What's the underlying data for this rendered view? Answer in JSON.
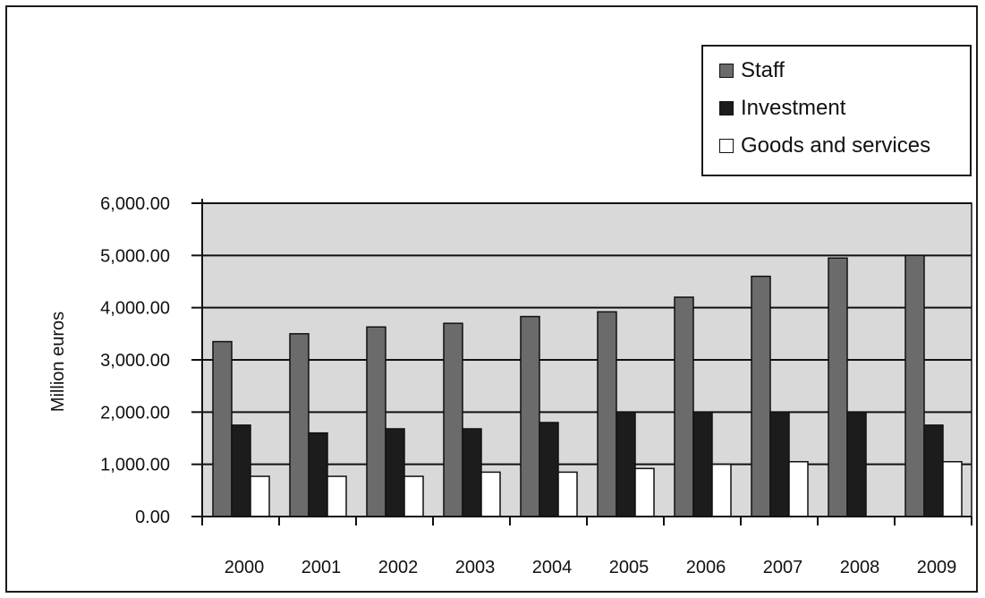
{
  "chart_data": {
    "type": "bar",
    "title": "",
    "xlabel": "",
    "ylabel": "Million euros",
    "ylim": [
      0,
      6000
    ],
    "yticks": [
      "0.00",
      "1,000.00",
      "2,000.00",
      "3,000.00",
      "4,000.00",
      "5,000.00",
      "6,000.00"
    ],
    "ytick_values": [
      0,
      1000,
      2000,
      3000,
      4000,
      5000,
      6000
    ],
    "categories": [
      "2000",
      "2001",
      "2002",
      "2003",
      "2004",
      "2005",
      "2006",
      "2007",
      "2008",
      "2009"
    ],
    "series": [
      {
        "name": "Staff",
        "color": "#6b6b6b",
        "values": [
          3350,
          3500,
          3630,
          3700,
          3830,
          3920,
          4200,
          4600,
          4950,
          5000
        ]
      },
      {
        "name": "Investment",
        "color": "#1c1c1c",
        "values": [
          1750,
          1600,
          1680,
          1680,
          1800,
          2000,
          2000,
          2000,
          2000,
          1750
        ]
      },
      {
        "name": "Goods and services",
        "color": "#ffffff",
        "values": [
          770,
          770,
          770,
          850,
          850,
          920,
          1000,
          1050,
          0,
          1050
        ]
      }
    ],
    "grid": true,
    "plot_background": "#d9d9d9",
    "legend_position": "top-right"
  }
}
